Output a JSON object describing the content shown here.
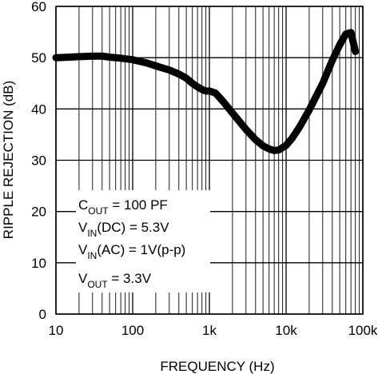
{
  "chart_data": {
    "type": "line",
    "xlabel": "FREQUENCY (Hz)",
    "ylabel": "RIPPLE REJECTION (dB)",
    "x_scale": "log",
    "xlim": [
      10,
      100000
    ],
    "ylim": [
      0,
      60
    ],
    "grid": true,
    "x_ticks": [
      {
        "value": 10,
        "label": "10"
      },
      {
        "value": 100,
        "label": "100"
      },
      {
        "value": 1000,
        "label": "1k"
      },
      {
        "value": 10000,
        "label": "10k"
      },
      {
        "value": 100000,
        "label": "100k"
      }
    ],
    "y_ticks": [
      {
        "value": 0,
        "label": "0"
      },
      {
        "value": 10,
        "label": "10"
      },
      {
        "value": 20,
        "label": "20"
      },
      {
        "value": 30,
        "label": "30"
      },
      {
        "value": 40,
        "label": "40"
      },
      {
        "value": 50,
        "label": "50"
      },
      {
        "value": 60,
        "label": "60"
      }
    ],
    "series": [
      {
        "color": "#000000",
        "x": [
          10,
          15,
          20,
          30,
          40,
          50,
          70,
          100,
          150,
          200,
          300,
          400,
          500,
          600,
          700,
          800,
          900,
          1000,
          1200,
          1500,
          2000,
          3000,
          4000,
          5000,
          6000,
          7000,
          8000,
          10000,
          12000,
          15000,
          20000,
          30000,
          40000,
          50000,
          60000,
          70000,
          80000
        ],
        "y": [
          50.0,
          50.1,
          50.2,
          50.3,
          50.3,
          50.1,
          49.9,
          49.6,
          49.0,
          48.4,
          47.6,
          46.8,
          46.0,
          45.0,
          44.3,
          43.8,
          43.5,
          43.5,
          43.1,
          41.5,
          39.2,
          36.0,
          34.0,
          32.8,
          32.2,
          31.9,
          32.0,
          32.9,
          34.3,
          36.5,
          39.8,
          45.0,
          49.5,
          52.5,
          54.6,
          54.9,
          51.2
        ]
      }
    ],
    "legend": {
      "position": "bottom-left",
      "lines": [
        {
          "main": "C",
          "sub": "OUT",
          "rest": " = 100 PF"
        },
        {
          "main": "V",
          "sub": "IN",
          "rest": "(DC) = 5.3V"
        },
        {
          "main": "V",
          "sub": "IN",
          "rest": "(AC) = 1V(p-p)"
        },
        {
          "main": "V",
          "sub": "OUT",
          "rest": " = 3.3V"
        }
      ]
    }
  }
}
